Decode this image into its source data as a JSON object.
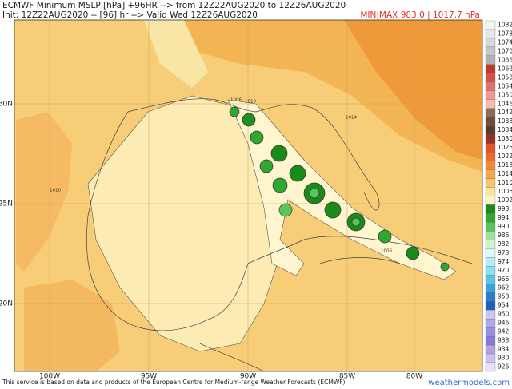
{
  "header": {
    "title": "ECMWF Minimum MSLP [hPa] +96HR --> from 12Z22AUG2020 to 12Z26AUG2020",
    "subtitle": "Init: 12Z22AUG2020 -- [96] hr --> Valid Wed 12Z26AUG2020",
    "minmax": "MIN|MAX 983.0 | 1017.7 hPa"
  },
  "map": {
    "lat_labels": [
      "30N",
      "25N",
      "20N"
    ],
    "lon_labels": [
      "100W",
      "95W",
      "90W",
      "85W",
      "80W"
    ],
    "contour_labels": [
      "1010",
      "1014",
      "1006",
      "1006",
      "1010"
    ]
  },
  "colorbar": {
    "levels": [
      1082,
      1078,
      1074,
      1070,
      1066,
      1062,
      1058,
      1054,
      1050,
      1046,
      1042,
      1038,
      1034,
      1030,
      1026,
      1022,
      1018,
      1014,
      1010,
      1006,
      1002,
      998,
      994,
      990,
      986,
      982,
      978,
      974,
      970,
      966,
      962,
      958,
      954,
      950,
      946,
      942,
      938,
      934,
      930,
      926
    ],
    "colors": [
      "#f4f4f4",
      "#e6e6e6",
      "#d8d8d8",
      "#c6c6c6",
      "#b2b2b2",
      "#c0392b",
      "#d55248",
      "#e27070",
      "#ee9898",
      "#f2bcae",
      "#8c6a58",
      "#6e4d3e",
      "#5a3a2e",
      "#9a2f22",
      "#df522a",
      "#e96b2f",
      "#f08a3a",
      "#f4a84e",
      "#f7c56a",
      "#fbe39c",
      "#fff3c8",
      "#1a8a1a",
      "#2ea82e",
      "#5cc45c",
      "#9ee29e",
      "#cff2cf",
      "#e0f8f8",
      "#b8ecf4",
      "#8fdcef",
      "#5ec4e6",
      "#3aa4d8",
      "#2a7fc8",
      "#1f5fb5",
      "#c8c8f0",
      "#b0a8e8",
      "#9890e0",
      "#8878d8",
      "#b8a0e0",
      "#d0c0f0",
      "#e8e0f8"
    ]
  },
  "footer": {
    "credit": "This service is based on data and products of the European Centre for Medium-range Weather Forecasts (ECMWF)",
    "site": "weathermodels.com"
  }
}
